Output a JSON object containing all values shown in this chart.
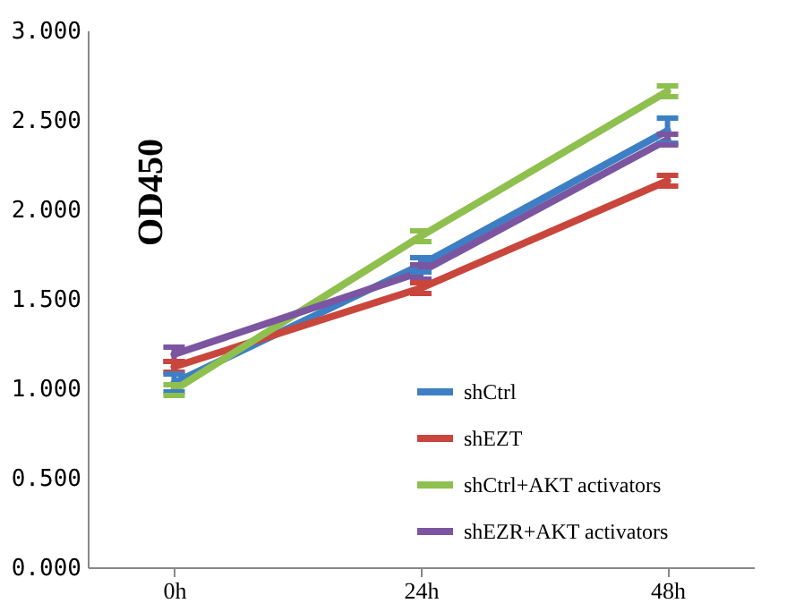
{
  "chart_data": {
    "type": "line",
    "ylabel": "OD450",
    "categories": [
      "0h",
      "24h",
      "48h"
    ],
    "series": [
      {
        "name": "shCtrl",
        "color": "#3d7fc4",
        "values": [
          1.03,
          1.69,
          2.44
        ],
        "errors": [
          0.05,
          0.04,
          0.07
        ]
      },
      {
        "name": "shEZT",
        "color": "#c9463d",
        "values": [
          1.12,
          1.56,
          2.16
        ],
        "errors": [
          0.03,
          0.03,
          0.03
        ]
      },
      {
        "name": "shCtrl+AKT activators",
        "color": "#8fc04f",
        "values": [
          0.99,
          1.85,
          2.66
        ],
        "errors": [
          0.03,
          0.03,
          0.03
        ]
      },
      {
        "name": "shEZR+AKT activators",
        "color": "#7c55a0",
        "values": [
          1.19,
          1.65,
          2.39
        ],
        "errors": [
          0.04,
          0.04,
          0.03
        ]
      }
    ],
    "ylim": [
      0,
      3
    ],
    "yticks": [
      {
        "value": 0,
        "label": "0.000"
      },
      {
        "value": 0.5,
        "label": "0.500"
      },
      {
        "value": 1,
        "label": "1.000"
      },
      {
        "value": 1.5,
        "label": "1.500"
      },
      {
        "value": 2,
        "label": "2.000"
      },
      {
        "value": 2.5,
        "label": "2.500"
      },
      {
        "value": 3,
        "label": "3.000"
      }
    ],
    "legend": "bottom right"
  }
}
